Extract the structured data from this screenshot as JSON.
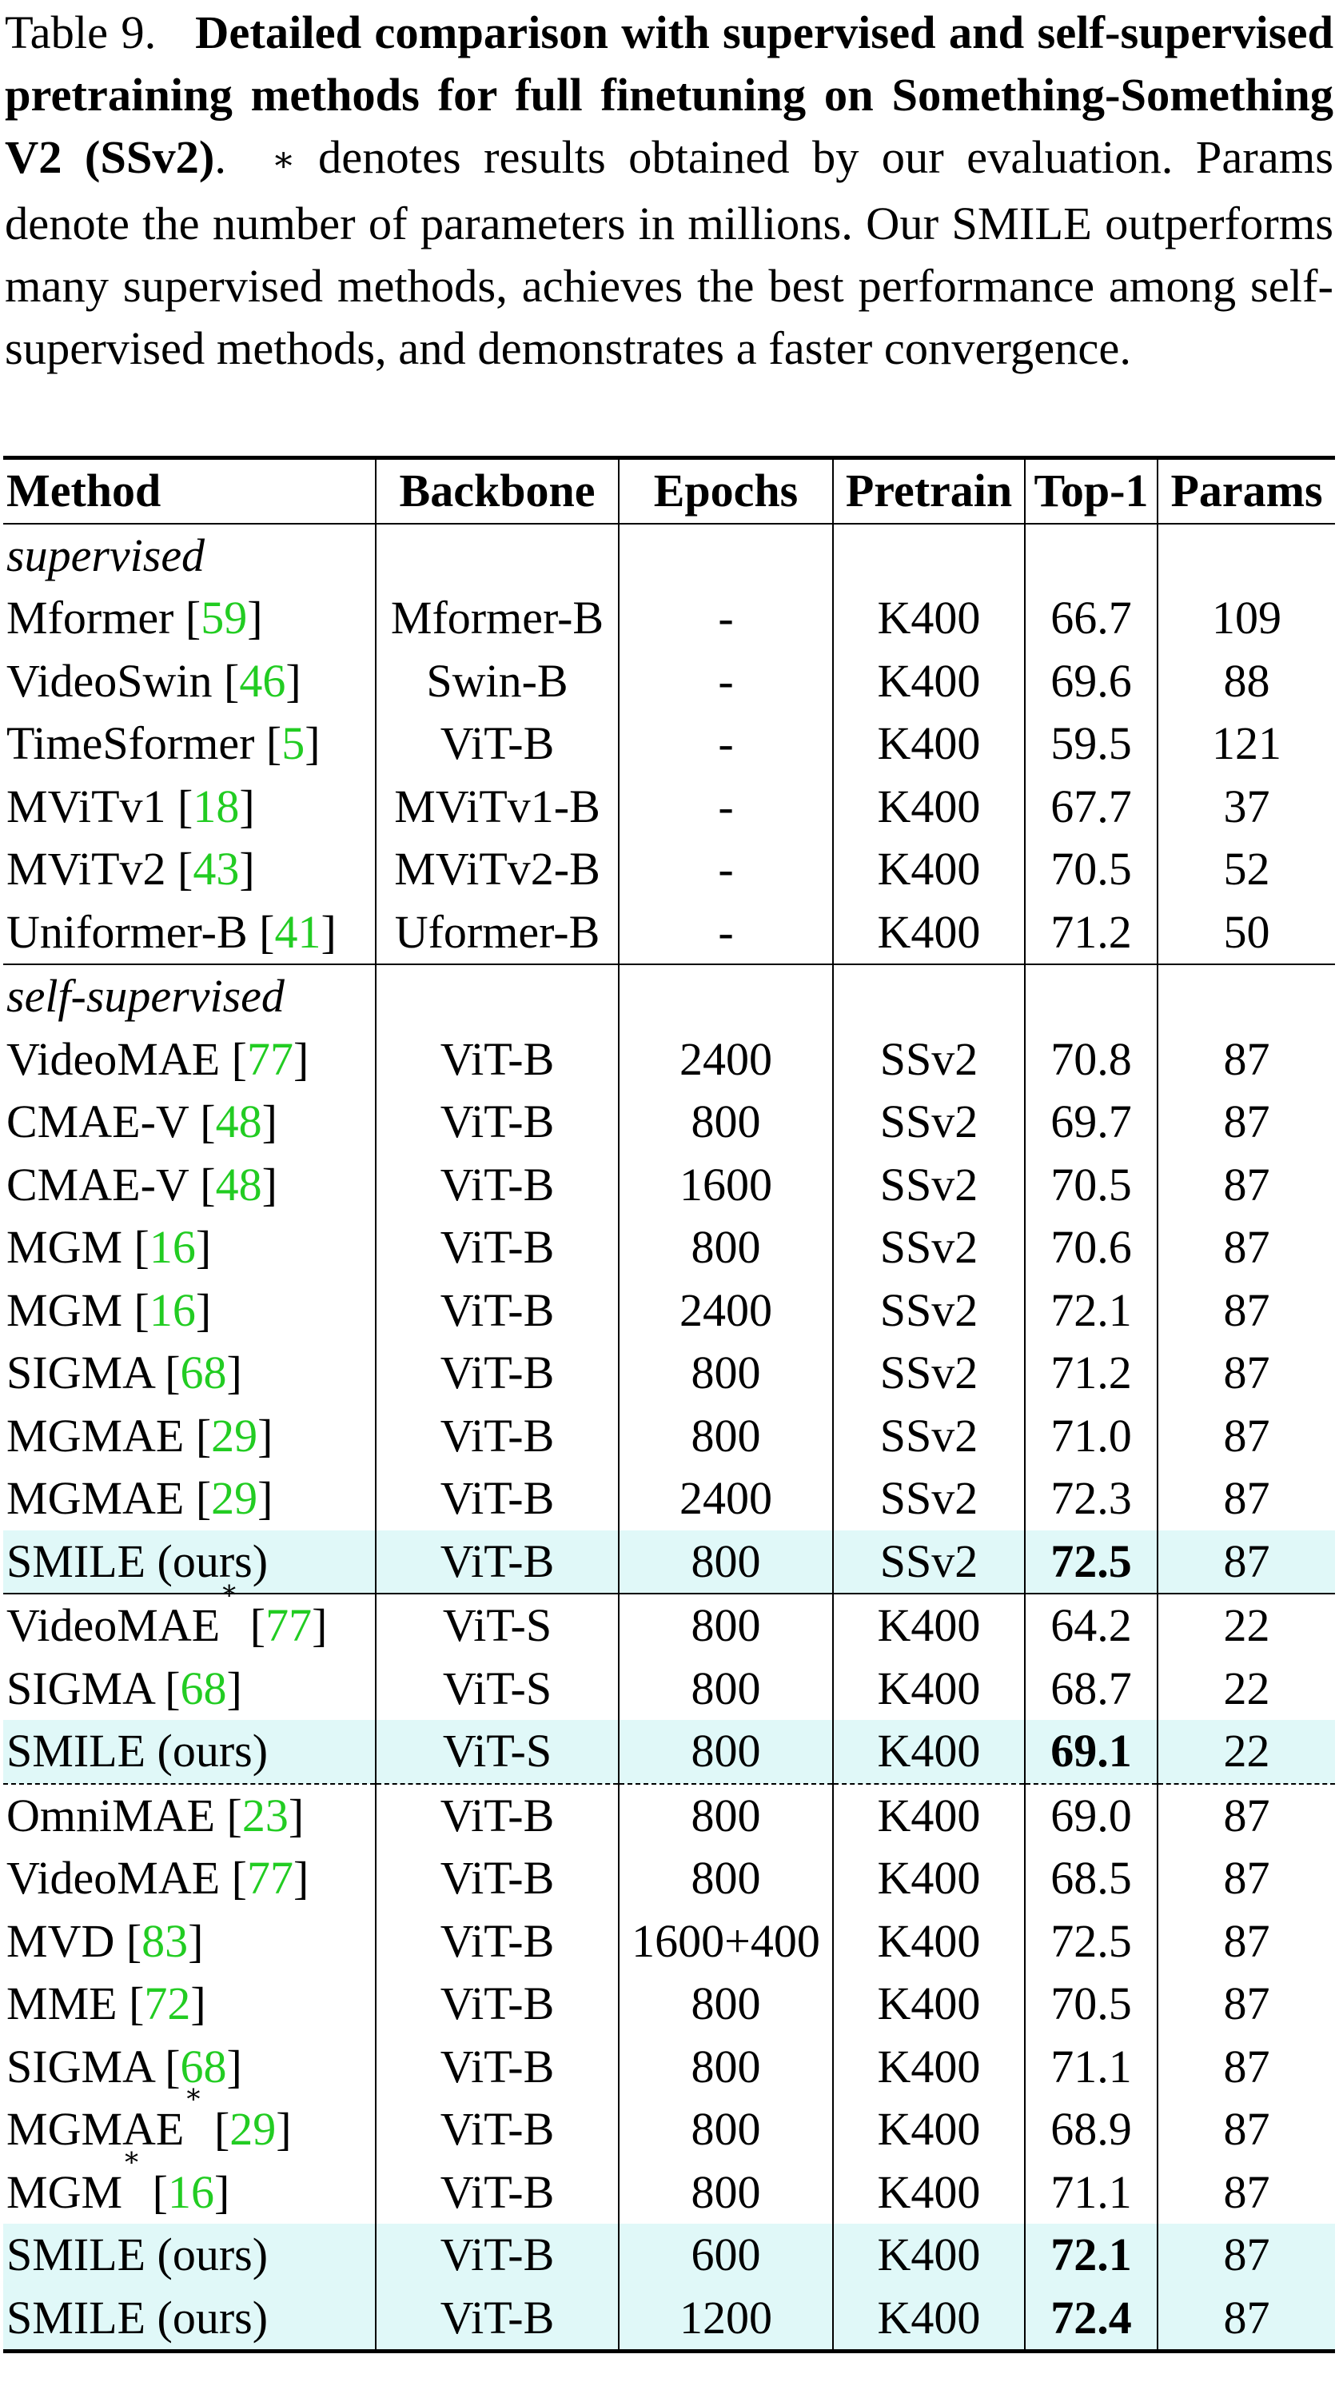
{
  "caption": {
    "label": "Table 9.",
    "title": "Detailed comparison with supervised and self-supervised pretraining methods for full finetuning on Something-Something V2 (SSv2)",
    "dot": ".",
    "asterisk": "∗",
    "body": "denotes results obtained by our evaluation. Params denote the number of parameters in millions. Our SMILE outperforms many supervised methods, achieves the best performance among self-supervised methods, and demonstrates a faster convergence."
  },
  "table": {
    "headers": [
      "Method",
      "Backbone",
      "Epochs",
      "Pretrain",
      "Top-1",
      "Params"
    ],
    "sections": {
      "supervised": "supervised",
      "self_supervised": "self-supervised"
    },
    "rows": [
      {
        "method": "Mformer",
        "cite": "59",
        "star": "",
        "backbone": "Mformer-B",
        "epochs": "-",
        "pretrain": "K400",
        "top1": "66.7",
        "params": "109"
      },
      {
        "method": "VideoSwin",
        "cite": "46",
        "star": "",
        "backbone": "Swin-B",
        "epochs": "-",
        "pretrain": "K400",
        "top1": "69.6",
        "params": "88"
      },
      {
        "method": "TimeSformer",
        "cite": "5",
        "star": "",
        "backbone": "ViT-B",
        "epochs": "-",
        "pretrain": "K400",
        "top1": "59.5",
        "params": "121"
      },
      {
        "method": "MViTv1",
        "cite": "18",
        "star": "",
        "backbone": "MViTv1-B",
        "epochs": "-",
        "pretrain": "K400",
        "top1": "67.7",
        "params": "37"
      },
      {
        "method": "MViTv2",
        "cite": "43",
        "star": "",
        "backbone": "MViTv2-B",
        "epochs": "-",
        "pretrain": "K400",
        "top1": "70.5",
        "params": "52"
      },
      {
        "method": "Uniformer-B",
        "cite": "41",
        "star": "",
        "backbone": "Uformer-B",
        "epochs": "-",
        "pretrain": "K400",
        "top1": "71.2",
        "params": "50"
      },
      {
        "method": "VideoMAE",
        "cite": "77",
        "star": "",
        "backbone": "ViT-B",
        "epochs": "2400",
        "pretrain": "SSv2",
        "top1": "70.8",
        "params": "87"
      },
      {
        "method": "CMAE-V",
        "cite": "48",
        "star": "",
        "backbone": "ViT-B",
        "epochs": "800",
        "pretrain": "SSv2",
        "top1": "69.7",
        "params": "87"
      },
      {
        "method": "CMAE-V",
        "cite": "48",
        "star": "",
        "backbone": "ViT-B",
        "epochs": "1600",
        "pretrain": "SSv2",
        "top1": "70.5",
        "params": "87"
      },
      {
        "method": "MGM",
        "cite": "16",
        "star": "",
        "backbone": "ViT-B",
        "epochs": "800",
        "pretrain": "SSv2",
        "top1": "70.6",
        "params": "87"
      },
      {
        "method": "MGM",
        "cite": "16",
        "star": "",
        "backbone": "ViT-B",
        "epochs": "2400",
        "pretrain": "SSv2",
        "top1": "72.1",
        "params": "87"
      },
      {
        "method": "SIGMA",
        "cite": "68",
        "star": "",
        "backbone": "ViT-B",
        "epochs": "800",
        "pretrain": "SSv2",
        "top1": "71.2",
        "params": "87"
      },
      {
        "method": "MGMAE",
        "cite": "29",
        "star": "",
        "backbone": "ViT-B",
        "epochs": "800",
        "pretrain": "SSv2",
        "top1": "71.0",
        "params": "87"
      },
      {
        "method": "MGMAE",
        "cite": "29",
        "star": "",
        "backbone": "ViT-B",
        "epochs": "2400",
        "pretrain": "SSv2",
        "top1": "72.3",
        "params": "87"
      },
      {
        "method": "SMILE (ours)",
        "cite": "",
        "star": "",
        "backbone": "ViT-B",
        "epochs": "800",
        "pretrain": "SSv2",
        "top1": "72.5",
        "params": "87"
      },
      {
        "method": "VideoMAE",
        "cite": "77",
        "star": "∗",
        "backbone": "ViT-S",
        "epochs": "800",
        "pretrain": "K400",
        "top1": "64.2",
        "params": "22"
      },
      {
        "method": "SIGMA",
        "cite": "68",
        "star": "",
        "backbone": "ViT-S",
        "epochs": "800",
        "pretrain": "K400",
        "top1": "68.7",
        "params": "22"
      },
      {
        "method": "SMILE (ours)",
        "cite": "",
        "star": "",
        "backbone": "ViT-S",
        "epochs": "800",
        "pretrain": "K400",
        "top1": "69.1",
        "params": "22"
      },
      {
        "method": "OmniMAE",
        "cite": "23",
        "star": "",
        "backbone": "ViT-B",
        "epochs": "800",
        "pretrain": "K400",
        "top1": "69.0",
        "params": "87"
      },
      {
        "method": "VideoMAE",
        "cite": "77",
        "star": "",
        "backbone": "ViT-B",
        "epochs": "800",
        "pretrain": "K400",
        "top1": "68.5",
        "params": "87"
      },
      {
        "method": "MVD",
        "cite": "83",
        "star": "",
        "backbone": "ViT-B",
        "epochs": "1600+400",
        "pretrain": "K400",
        "top1": "72.5",
        "params": "87"
      },
      {
        "method": "MME",
        "cite": "72",
        "star": "",
        "backbone": "ViT-B",
        "epochs": "800",
        "pretrain": "K400",
        "top1": "70.5",
        "params": "87"
      },
      {
        "method": "SIGMA",
        "cite": "68",
        "star": "",
        "backbone": "ViT-B",
        "epochs": "800",
        "pretrain": "K400",
        "top1": "71.1",
        "params": "87"
      },
      {
        "method": "MGMAE",
        "cite": "29",
        "star": "∗",
        "backbone": "ViT-B",
        "epochs": "800",
        "pretrain": "K400",
        "top1": "68.9",
        "params": "87"
      },
      {
        "method": "MGM",
        "cite": "16",
        "star": "∗",
        "backbone": "ViT-B",
        "epochs": "800",
        "pretrain": "K400",
        "top1": "71.1",
        "params": "87"
      },
      {
        "method": "SMILE (ours)",
        "cite": "",
        "star": "",
        "backbone": "ViT-B",
        "epochs": "600",
        "pretrain": "K400",
        "top1": "72.1",
        "params": "87"
      },
      {
        "method": "SMILE (ours)",
        "cite": "",
        "star": "",
        "backbone": "ViT-B",
        "epochs": "1200",
        "pretrain": "K400",
        "top1": "72.4",
        "params": "87"
      }
    ]
  }
}
